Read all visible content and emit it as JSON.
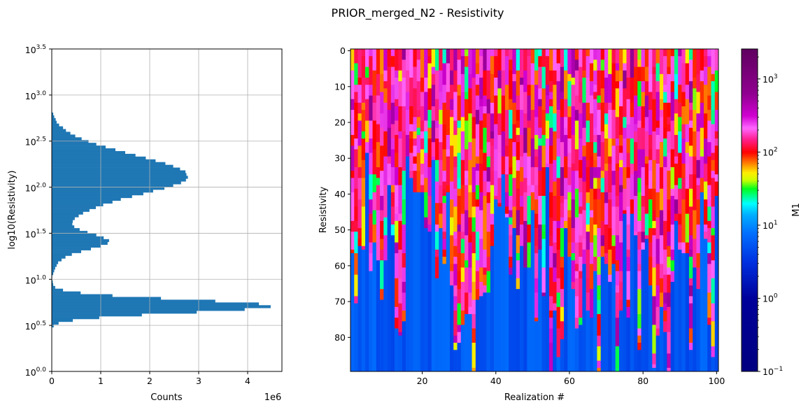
{
  "title": "PRIOR_merged_N2 - Resistivity",
  "chart_data": [
    {
      "type": "bar",
      "orientation": "horizontal",
      "xlabel": "Counts",
      "x_offset_label": "1e6",
      "ylabel": "log10(Resistivity)",
      "xlim": [
        0,
        4.7
      ],
      "x_scale_factor": 1000000,
      "ylim_log10": [
        0.0,
        3.5
      ],
      "grid": true,
      "color": "#1f77b4",
      "x_ticks": [
        "0",
        "1",
        "2",
        "3",
        "4"
      ],
      "y_ticks": [
        {
          "base": "10",
          "exp": "0.0"
        },
        {
          "base": "10",
          "exp": "0.5"
        },
        {
          "base": "10",
          "exp": "1.0"
        },
        {
          "base": "10",
          "exp": "1.5"
        },
        {
          "base": "10",
          "exp": "2.0"
        },
        {
          "base": "10",
          "exp": "2.5"
        },
        {
          "base": "10",
          "exp": "3.0"
        },
        {
          "base": "10",
          "exp": "3.5"
        }
      ],
      "bin_range_log10": [
        0.48,
        2.81
      ],
      "counts_millions": [
        0.04,
        0.14,
        0.43,
        0.97,
        1.84,
        2.96,
        3.94,
        4.47,
        4.23,
        3.34,
        2.23,
        1.24,
        0.59,
        0.23,
        0.07,
        0.03,
        0.02,
        0,
        0.01,
        0.03,
        0.05,
        0.07,
        0.1,
        0.13,
        0.2,
        0.28,
        0.41,
        0.6,
        0.8,
        1.0,
        1.14,
        1.17,
        1.06,
        0.91,
        0.73,
        0.57,
        0.46,
        0.42,
        0.43,
        0.47,
        0.55,
        0.64,
        0.77,
        0.9,
        1.05,
        1.24,
        1.41,
        1.64,
        1.87,
        2.07,
        2.3,
        2.48,
        2.64,
        2.74,
        2.78,
        2.75,
        2.73,
        2.62,
        2.48,
        2.32,
        2.12,
        1.92,
        1.71,
        1.5,
        1.3,
        1.1,
        0.91,
        0.75,
        0.61,
        0.48,
        0.38,
        0.29,
        0.23,
        0.15,
        0.1,
        0.08,
        0.05,
        0.03
      ]
    },
    {
      "type": "heatmap",
      "xlabel": "Realization #",
      "ylabel": "Resistivity",
      "x_range": [
        1,
        100
      ],
      "y_range": [
        0,
        89
      ],
      "y_inverted": true,
      "x_ticks": [
        "20",
        "40",
        "60",
        "80",
        "100"
      ],
      "y_ticks": [
        "0",
        "10",
        "20",
        "30",
        "40",
        "50",
        "60",
        "70",
        "80"
      ],
      "basement_start_depth": [
        57,
        71,
        55,
        56,
        29,
        62,
        54,
        59,
        70,
        59,
        38,
        52,
        78,
        80,
        76,
        30,
        36,
        40,
        40,
        40,
        50,
        51,
        31,
        64,
        50,
        60,
        40,
        66,
        84,
        82,
        77,
        74,
        74,
        90,
        70,
        69,
        68,
        68,
        55,
        42,
        44,
        35,
        47,
        63,
        50,
        67,
        55,
        61,
        61,
        45,
        76,
        56,
        69,
        33,
        90,
        73,
        86,
        81,
        50,
        58,
        67,
        78,
        77,
        60,
        73,
        75,
        62,
        90,
        58,
        60,
        65,
        60,
        90,
        73,
        46,
        75,
        46,
        52,
        84,
        56,
        53,
        66,
        89,
        80,
        72,
        79,
        90,
        65,
        48,
        56,
        57,
        57,
        84,
        61,
        67,
        40,
        53,
        77,
        86,
        41
      ],
      "basement_value_log10": 0.75,
      "upper_value_log10_range": [
        1.3,
        2.8
      ],
      "colorbar": {
        "label": "M1",
        "scale": "log",
        "range": [
          0.1,
          2570
        ],
        "ticks": [
          {
            "base": "10",
            "exp": "−1"
          },
          {
            "base": "10",
            "exp": "0"
          },
          {
            "base": "10",
            "exp": "1"
          },
          {
            "base": "10",
            "exp": "2"
          },
          {
            "base": "10",
            "exp": "3"
          }
        ],
        "colormap_stops": [
          [
            -1.0,
            "#000080"
          ],
          [
            0.0,
            "#00009a"
          ],
          [
            0.5,
            "#0030e0"
          ],
          [
            0.9,
            "#0070ff"
          ],
          [
            1.15,
            "#00b0ff"
          ],
          [
            1.3,
            "#00ffff"
          ],
          [
            1.5,
            "#00ff20"
          ],
          [
            1.62,
            "#ccff00"
          ],
          [
            1.72,
            "#ffee00"
          ],
          [
            1.85,
            "#ff8000"
          ],
          [
            2.0,
            "#ff0000"
          ],
          [
            2.18,
            "#ff2090"
          ],
          [
            2.33,
            "#ff66ff"
          ],
          [
            2.5,
            "#d000d0"
          ],
          [
            2.8,
            "#900090"
          ],
          [
            3.41,
            "#600060"
          ]
        ]
      }
    }
  ]
}
